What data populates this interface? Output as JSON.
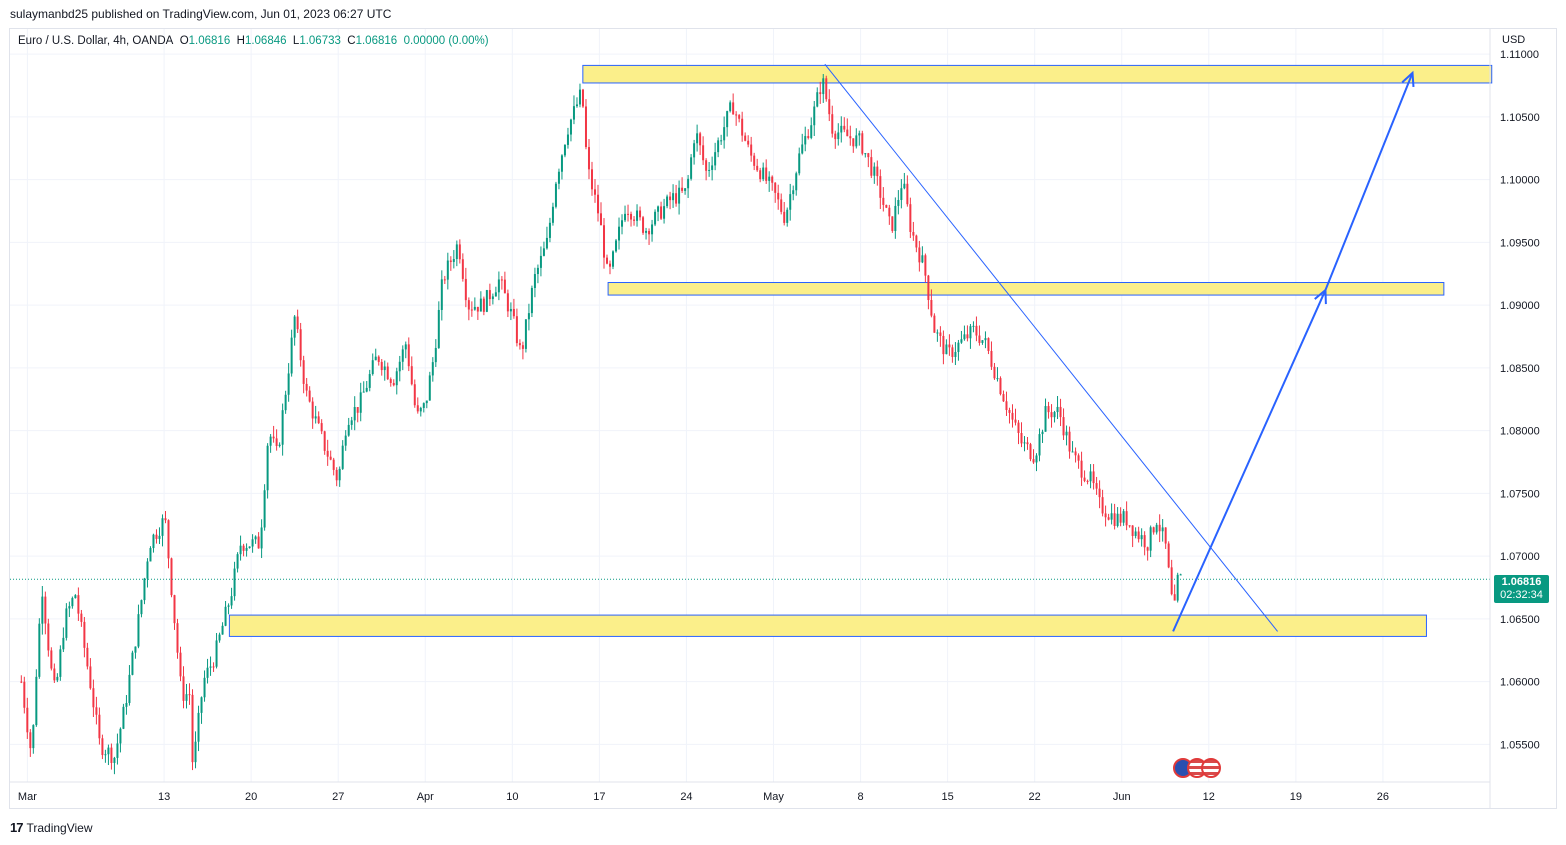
{
  "header": {
    "credit": "sulaymanbd25 published on TradingView.com, Jun 01, 2023 06:27 UTC"
  },
  "legend": {
    "symbol": "Euro / U.S. Dollar, 4h, OANDA",
    "o_label": "O",
    "o_value": "1.06816",
    "h_label": "H",
    "h_value": "1.06846",
    "l_label": "L",
    "l_value": "1.06733",
    "c_label": "C",
    "c_value": "1.06816",
    "change": "0.00000 (0.00%)"
  },
  "axis": {
    "currency": "USD",
    "current_price": "1.06816",
    "countdown": "02:32:34"
  },
  "footer": {
    "logo_glyph": "17",
    "brand": "TradingView"
  },
  "colors": {
    "up": "#089981",
    "down": "#f23645",
    "zone_fill": "#fbef8a",
    "zone_border": "#2962ff",
    "trendline": "#2962ff",
    "grid": "#f0f3fa"
  },
  "chart_data": {
    "type": "candlestick",
    "symbol": "EURUSD",
    "timeframe": "4h",
    "ylim": [
      1.052,
      1.112
    ],
    "xlim": [
      -0.2,
      16.8
    ],
    "y_ticks": [
      1.055,
      1.06,
      1.065,
      1.07,
      1.075,
      1.08,
      1.085,
      1.09,
      1.095,
      1.1,
      1.105,
      1.11
    ],
    "y_tick_labels": [
      "1.05500",
      "1.06000",
      "1.06500",
      "1.07000",
      "1.07500",
      "1.08000",
      "1.08500",
      "1.09000",
      "1.09500",
      "1.10000",
      "1.10500",
      "1.11000"
    ],
    "x_ticks": [
      {
        "label": "Mar",
        "week": 0
      },
      {
        "label": "13",
        "week": 1.57
      },
      {
        "label": "20",
        "week": 2.57
      },
      {
        "label": "27",
        "week": 3.57
      },
      {
        "label": "Apr",
        "week": 4.57
      },
      {
        "label": "10",
        "week": 5.57
      },
      {
        "label": "17",
        "week": 6.57
      },
      {
        "label": "24",
        "week": 7.57
      },
      {
        "label": "May",
        "week": 8.57
      },
      {
        "label": "8",
        "week": 9.57
      },
      {
        "label": "15",
        "week": 10.57
      },
      {
        "label": "22",
        "week": 11.57
      },
      {
        "label": "Jun",
        "week": 12.57
      },
      {
        "label": "12",
        "week": 13.57
      },
      {
        "label": "19",
        "week": 14.57
      },
      {
        "label": "26",
        "week": 15.57
      }
    ],
    "price_path": [
      [
        -0.07,
        1.06
      ],
      [
        0.05,
        1.054
      ],
      [
        0.12,
        1.063
      ],
      [
        0.17,
        1.0675
      ],
      [
        0.27,
        1.061
      ],
      [
        0.32,
        1.059
      ],
      [
        0.43,
        1.065
      ],
      [
        0.55,
        1.067
      ],
      [
        0.72,
        1.06
      ],
      [
        0.83,
        1.055
      ],
      [
        1.0,
        1.054
      ],
      [
        1.12,
        1.058
      ],
      [
        1.3,
        1.066
      ],
      [
        1.4,
        1.071
      ],
      [
        1.58,
        1.073
      ],
      [
        1.77,
        1.059
      ],
      [
        1.87,
        1.059
      ],
      [
        1.9,
        1.053
      ],
      [
        2.02,
        1.06
      ],
      [
        2.15,
        1.062
      ],
      [
        2.34,
        1.067
      ],
      [
        2.45,
        1.071
      ],
      [
        2.67,
        1.071
      ],
      [
        2.77,
        1.08
      ],
      [
        2.87,
        1.078
      ],
      [
        3.0,
        1.085
      ],
      [
        3.07,
        1.089
      ],
      [
        3.2,
        1.083
      ],
      [
        3.4,
        1.079
      ],
      [
        3.57,
        1.076
      ],
      [
        3.67,
        1.081
      ],
      [
        3.81,
        1.082
      ],
      [
        4.02,
        1.086
      ],
      [
        4.2,
        1.084
      ],
      [
        4.35,
        1.087
      ],
      [
        4.47,
        1.081
      ],
      [
        4.57,
        1.082
      ],
      [
        4.67,
        1.086
      ],
      [
        4.77,
        1.092
      ],
      [
        4.95,
        1.095
      ],
      [
        5.06,
        1.09
      ],
      [
        5.23,
        1.09
      ],
      [
        5.42,
        1.092
      ],
      [
        5.57,
        1.089
      ],
      [
        5.67,
        1.086
      ],
      [
        5.82,
        1.092
      ],
      [
        5.97,
        1.095
      ],
      [
        6.07,
        1.1
      ],
      [
        6.2,
        1.104
      ],
      [
        6.37,
        1.107
      ],
      [
        6.43,
        1.101
      ],
      [
        6.57,
        1.097
      ],
      [
        6.67,
        1.092
      ],
      [
        6.87,
        1.098
      ],
      [
        7.0,
        1.097
      ],
      [
        7.1,
        1.096
      ],
      [
        7.4,
        1.0985
      ],
      [
        7.57,
        1.099
      ],
      [
        7.67,
        1.104
      ],
      [
        7.8,
        1.1005
      ],
      [
        8.1,
        1.106
      ],
      [
        8.3,
        1.102
      ],
      [
        8.57,
        1.099
      ],
      [
        8.7,
        1.097
      ],
      [
        8.87,
        1.102
      ],
      [
        9.02,
        1.105
      ],
      [
        9.13,
        1.108
      ],
      [
        9.25,
        1.104
      ],
      [
        9.4,
        1.1035
      ],
      [
        9.57,
        1.103
      ],
      [
        9.75,
        1.1
      ],
      [
        9.92,
        1.096
      ],
      [
        10.05,
        1.1
      ],
      [
        10.15,
        1.096
      ],
      [
        10.3,
        1.093
      ],
      [
        10.42,
        1.088
      ],
      [
        10.57,
        1.086
      ],
      [
        10.72,
        1.087
      ],
      [
        10.87,
        1.088
      ],
      [
        11.0,
        1.087
      ],
      [
        11.15,
        1.084
      ],
      [
        11.3,
        1.081
      ],
      [
        11.42,
        1.079
      ],
      [
        11.57,
        1.078
      ],
      [
        11.7,
        1.0815
      ],
      [
        11.85,
        1.0815
      ],
      [
        12.0,
        1.078
      ],
      [
        12.1,
        1.077
      ],
      [
        12.22,
        1.076
      ],
      [
        12.32,
        1.074
      ],
      [
        12.5,
        1.073
      ],
      [
        12.62,
        1.073
      ],
      [
        12.72,
        1.072
      ],
      [
        12.87,
        1.071
      ],
      [
        12.97,
        1.073
      ],
      [
        13.07,
        1.071
      ],
      [
        13.17,
        1.065
      ],
      [
        13.2,
        1.068
      ],
      [
        13.25,
        1.06816
      ]
    ],
    "annotations": {
      "zones": [
        {
          "from_week": 6.38,
          "to_week": 16.82,
          "low": 1.1077,
          "high": 1.1091
        },
        {
          "from_week": 6.67,
          "to_week": 16.27,
          "low": 1.0908,
          "high": 1.0918
        },
        {
          "from_week": 2.32,
          "to_week": 16.07,
          "low": 1.0636,
          "high": 1.0653
        }
      ],
      "trendline": {
        "from": [
          9.16,
          1.1092
        ],
        "to": [
          14.36,
          1.064
        ]
      },
      "projection_arrows": [
        {
          "from": [
            13.16,
            1.064
          ],
          "to": [
            14.91,
            1.0912
          ]
        },
        {
          "from": [
            14.91,
            1.0912
          ],
          "to": [
            15.91,
            1.1085
          ]
        }
      ],
      "last_price_line": 1.06816
    }
  }
}
